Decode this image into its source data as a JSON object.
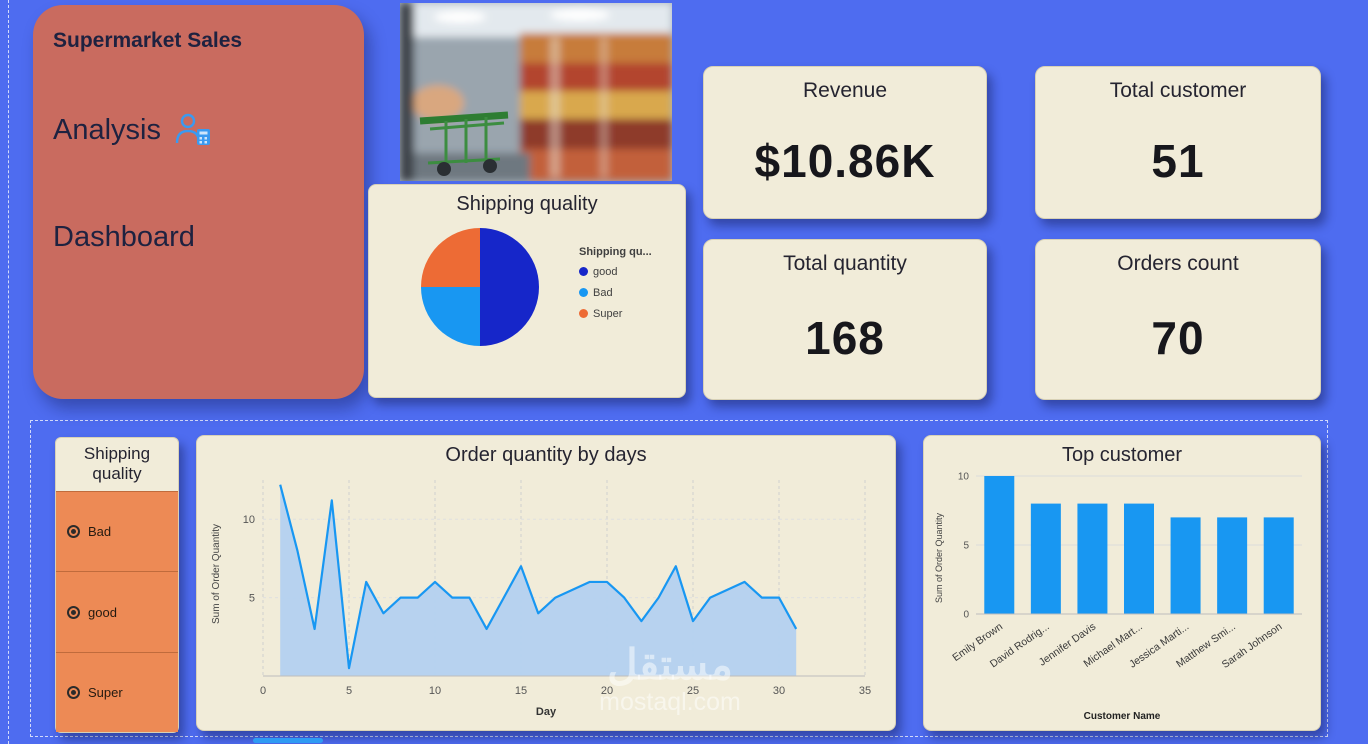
{
  "colors": {
    "background": "#4e6cf0",
    "card_cream": "#f1ecd9",
    "title_card": "#c96b5f",
    "accent_blue": "#1897f2",
    "dark_blue": "#1626c9",
    "orange": "#ed6b35",
    "slicer_orange": "#ed8a55",
    "area_fill": "#b3d1f0",
    "text_dark": "#21233f"
  },
  "title_card": {
    "title": "Supermarket Sales",
    "line2": "Analysis",
    "line3": "Dashboard"
  },
  "kpis": [
    {
      "label": "Revenue",
      "value": "$10.86K"
    },
    {
      "label": "Total customer",
      "value": "51"
    },
    {
      "label": "Total quantity",
      "value": "168"
    },
    {
      "label": "Orders count",
      "value": "70"
    }
  ],
  "slicer": {
    "title": "Shipping quality",
    "options": [
      "Bad",
      "good",
      "Super"
    ]
  },
  "watermark": {
    "arabic": "مستقل",
    "domain": "mostaql.com"
  },
  "chart_data": [
    {
      "type": "pie",
      "title": "Shipping quality",
      "legend_title": "Shipping qu...",
      "labels": [
        "good",
        "Bad",
        "Super"
      ],
      "values": [
        50,
        25,
        25
      ],
      "colors": [
        "#1626c9",
        "#1897f2",
        "#ed6b35"
      ],
      "legend_position": "right"
    },
    {
      "type": "area",
      "title": "Order quantity by days",
      "xlabel": "Day",
      "ylabel": "Sum of Order Quantity",
      "x": [
        1,
        2,
        3,
        4,
        5,
        6,
        7,
        8,
        9,
        10,
        11,
        12,
        13,
        14,
        15,
        16,
        17,
        18,
        19,
        20,
        21,
        22,
        23,
        24,
        25,
        26,
        27,
        28,
        29,
        30,
        31
      ],
      "values": [
        12.2,
        8,
        3,
        11.2,
        0.5,
        6,
        4,
        5,
        5,
        6,
        5,
        5,
        3,
        5,
        7,
        4,
        5,
        5.5,
        6,
        6,
        5,
        3.5,
        5,
        7,
        3.5,
        5,
        5.5,
        6,
        5,
        5,
        3
      ],
      "xlim": [
        0,
        35
      ],
      "ylim": [
        0,
        12.5
      ],
      "xticks": [
        0,
        5,
        10,
        15,
        20,
        25,
        30,
        35
      ],
      "yticks": [
        5,
        10
      ],
      "grid": true
    },
    {
      "type": "bar",
      "title": "Top customer",
      "xlabel": "Customer Name",
      "ylabel": "Sum of Order Quantity",
      "categories": [
        "Emily Brown",
        "David Rodrig...",
        "Jennifer Davis",
        "Michael Mart...",
        "Jessica Marti...",
        "Matthew Smi...",
        "Sarah Johnson"
      ],
      "values": [
        10,
        8,
        8,
        8,
        7,
        7,
        7
      ],
      "ylim": [
        0,
        10
      ],
      "yticks": [
        0,
        5,
        10
      ],
      "grid": true
    }
  ]
}
